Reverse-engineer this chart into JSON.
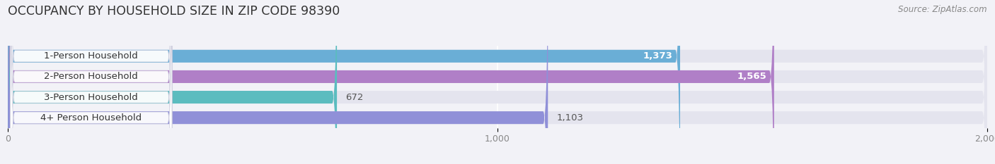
{
  "title": "OCCUPANCY BY HOUSEHOLD SIZE IN ZIP CODE 98390",
  "source_text": "Source: ZipAtlas.com",
  "categories": [
    "1-Person Household",
    "2-Person Household",
    "3-Person Household",
    "4+ Person Household"
  ],
  "values": [
    1373,
    1565,
    672,
    1103
  ],
  "bar_colors": [
    "#6aaed6",
    "#b07fc7",
    "#5bbcbf",
    "#9090d8"
  ],
  "label_colors": [
    "#ffffff",
    "#ffffff",
    "#555555",
    "#555555"
  ],
  "xlim": [
    0,
    2000
  ],
  "xticks": [
    0,
    1000,
    2000
  ],
  "xtick_labels": [
    "0",
    "1,000",
    "2,000"
  ],
  "background_color": "#f2f2f7",
  "bar_background_color": "#e4e4ee",
  "title_fontsize": 12.5,
  "label_fontsize": 9.5,
  "tick_fontsize": 9,
  "value_fontsize": 9.5,
  "bar_height": 0.62,
  "figsize": [
    14.06,
    2.33
  ],
  "dpi": 100
}
